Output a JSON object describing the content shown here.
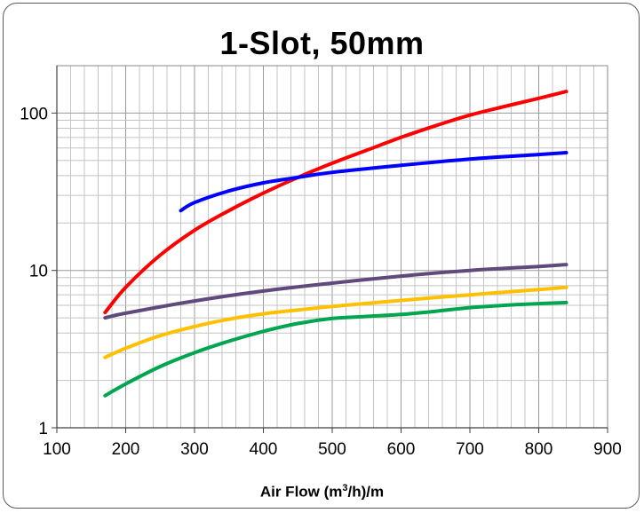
{
  "chart_data": {
    "type": "line",
    "title": "1-Slot, 50mm",
    "xlabel_parts": {
      "pre": "Air Flow (m",
      "sup": "3",
      "post": "/h)/m"
    },
    "ylabel": "",
    "xlim": [
      100,
      900
    ],
    "ylim": [
      1,
      200
    ],
    "yscale": "log",
    "x_ticks": [
      "100",
      "200",
      "300",
      "400",
      "500",
      "600",
      "700",
      "800",
      "900"
    ],
    "y_ticks": [
      "1",
      "10",
      "100"
    ],
    "grid": true,
    "legend": "none",
    "series": [
      {
        "color": "#ff0000",
        "points": [
          [
            170,
            5.4
          ],
          [
            200,
            7.8
          ],
          [
            250,
            12.5
          ],
          [
            300,
            18
          ],
          [
            350,
            24
          ],
          [
            400,
            31
          ],
          [
            450,
            39
          ],
          [
            500,
            48
          ],
          [
            550,
            58
          ],
          [
            600,
            70
          ],
          [
            650,
            83
          ],
          [
            700,
            97
          ],
          [
            750,
            110
          ],
          [
            800,
            124
          ],
          [
            840,
            137
          ]
        ]
      },
      {
        "color": "#0000ff",
        "points": [
          [
            280,
            24
          ],
          [
            300,
            27
          ],
          [
            350,
            32
          ],
          [
            400,
            36
          ],
          [
            450,
            39
          ],
          [
            500,
            42
          ],
          [
            600,
            46.5
          ],
          [
            700,
            51
          ],
          [
            800,
            54.5
          ],
          [
            840,
            56
          ]
        ]
      },
      {
        "color": "#604a7b",
        "points": [
          [
            170,
            5.0
          ],
          [
            200,
            5.35
          ],
          [
            300,
            6.4
          ],
          [
            400,
            7.4
          ],
          [
            500,
            8.3
          ],
          [
            600,
            9.2
          ],
          [
            700,
            10.0
          ],
          [
            800,
            10.6
          ],
          [
            840,
            10.9
          ]
        ]
      },
      {
        "color": "#ffc000",
        "points": [
          [
            170,
            2.8
          ],
          [
            200,
            3.2
          ],
          [
            250,
            3.85
          ],
          [
            300,
            4.4
          ],
          [
            350,
            4.9
          ],
          [
            400,
            5.3
          ],
          [
            450,
            5.6
          ],
          [
            500,
            5.9
          ],
          [
            600,
            6.45
          ],
          [
            700,
            7.0
          ],
          [
            800,
            7.55
          ],
          [
            840,
            7.8
          ]
        ]
      },
      {
        "color": "#00a550",
        "points": [
          [
            170,
            1.6
          ],
          [
            200,
            1.9
          ],
          [
            250,
            2.45
          ],
          [
            300,
            3.0
          ],
          [
            350,
            3.55
          ],
          [
            400,
            4.1
          ],
          [
            450,
            4.6
          ],
          [
            500,
            4.95
          ],
          [
            550,
            5.1
          ],
          [
            600,
            5.25
          ],
          [
            650,
            5.5
          ],
          [
            700,
            5.8
          ],
          [
            750,
            6.0
          ],
          [
            800,
            6.15
          ],
          [
            840,
            6.25
          ]
        ]
      }
    ]
  }
}
